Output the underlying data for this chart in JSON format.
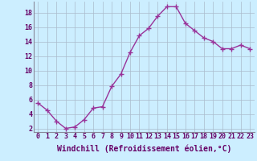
{
  "x": [
    0,
    1,
    2,
    3,
    4,
    5,
    6,
    7,
    8,
    9,
    10,
    11,
    12,
    13,
    14,
    15,
    16,
    17,
    18,
    19,
    20,
    21,
    22,
    23
  ],
  "y": [
    5.5,
    4.5,
    3.0,
    2.0,
    2.2,
    3.2,
    4.8,
    5.0,
    7.8,
    9.5,
    12.5,
    14.8,
    15.8,
    17.5,
    18.8,
    18.8,
    16.5,
    15.5,
    14.5,
    14.0,
    13.0,
    13.0,
    13.5,
    13.0
  ],
  "line_color": "#993399",
  "marker": "+",
  "marker_size": 4,
  "xlabel": "Windchill (Refroidissement éolien,°C)",
  "xlabel_fontsize": 7,
  "bg_color": "#cceeff",
  "grid_color": "#aabbcc",
  "ylim": [
    1.5,
    19.5
  ],
  "yticks": [
    2,
    4,
    6,
    8,
    10,
    12,
    14,
    16,
    18
  ],
  "xlim": [
    -0.5,
    23.5
  ],
  "xticks": [
    0,
    1,
    2,
    3,
    4,
    5,
    6,
    7,
    8,
    9,
    10,
    11,
    12,
    13,
    14,
    15,
    16,
    17,
    18,
    19,
    20,
    21,
    22,
    23
  ],
  "xtick_labels": [
    "0",
    "1",
    "2",
    "3",
    "4",
    "5",
    "6",
    "7",
    "8",
    "9",
    "10",
    "11",
    "12",
    "13",
    "14",
    "15",
    "16",
    "17",
    "18",
    "19",
    "20",
    "21",
    "22",
    "23"
  ],
  "tick_fontsize": 6,
  "line_width": 1.0,
  "label_color": "#660066"
}
